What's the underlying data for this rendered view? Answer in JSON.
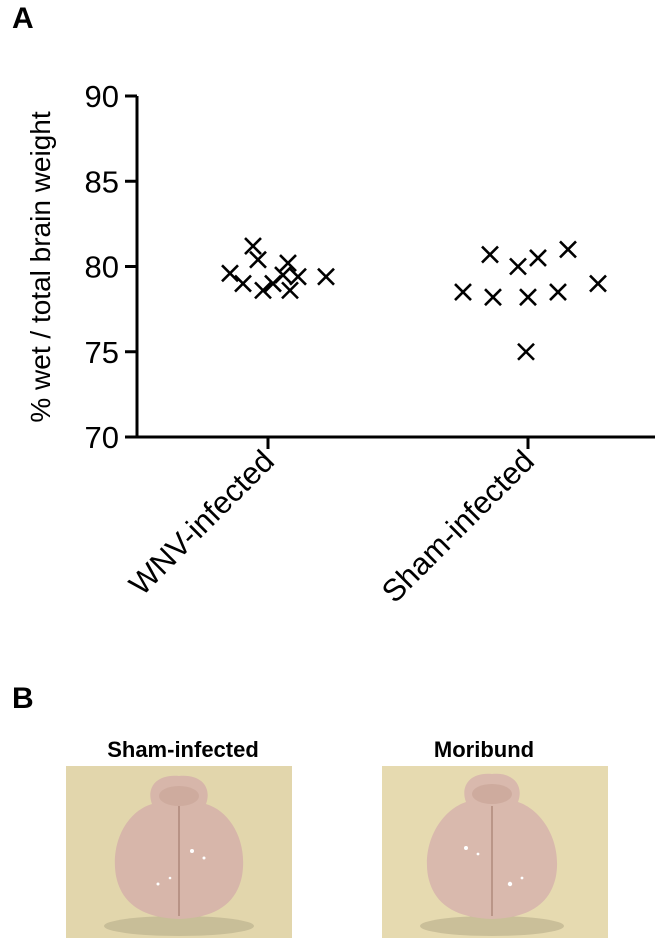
{
  "panel_a": {
    "letter": "A"
  },
  "panel_b": {
    "letter": "B"
  },
  "chart_data": {
    "type": "scatter",
    "ylabel": "% wet / total brain weight",
    "xlabel": "",
    "ylim": [
      70,
      90
    ],
    "yticks": [
      70,
      75,
      80,
      85,
      90
    ],
    "categories": [
      "WNV-infected",
      "Sham-infected"
    ],
    "series": [
      {
        "category": "WNV-infected",
        "values": [
          81.2,
          80.4,
          80.2,
          79.6,
          79.5,
          79.0,
          79.0,
          78.6,
          78.6,
          79.4,
          79.4
        ]
      },
      {
        "category": "Sham-infected",
        "values": [
          80.7,
          80.5,
          81.0,
          80.0,
          79.0,
          78.5,
          78.2,
          78.2,
          78.5,
          75.0
        ]
      }
    ],
    "marker": "x",
    "marker_color": "#000000"
  },
  "photos": [
    {
      "title": "Sham-infected"
    },
    {
      "title": "Moribund"
    }
  ],
  "colors": {
    "brain": "#d9b8ad",
    "backdrop": "#e8dcb0"
  }
}
